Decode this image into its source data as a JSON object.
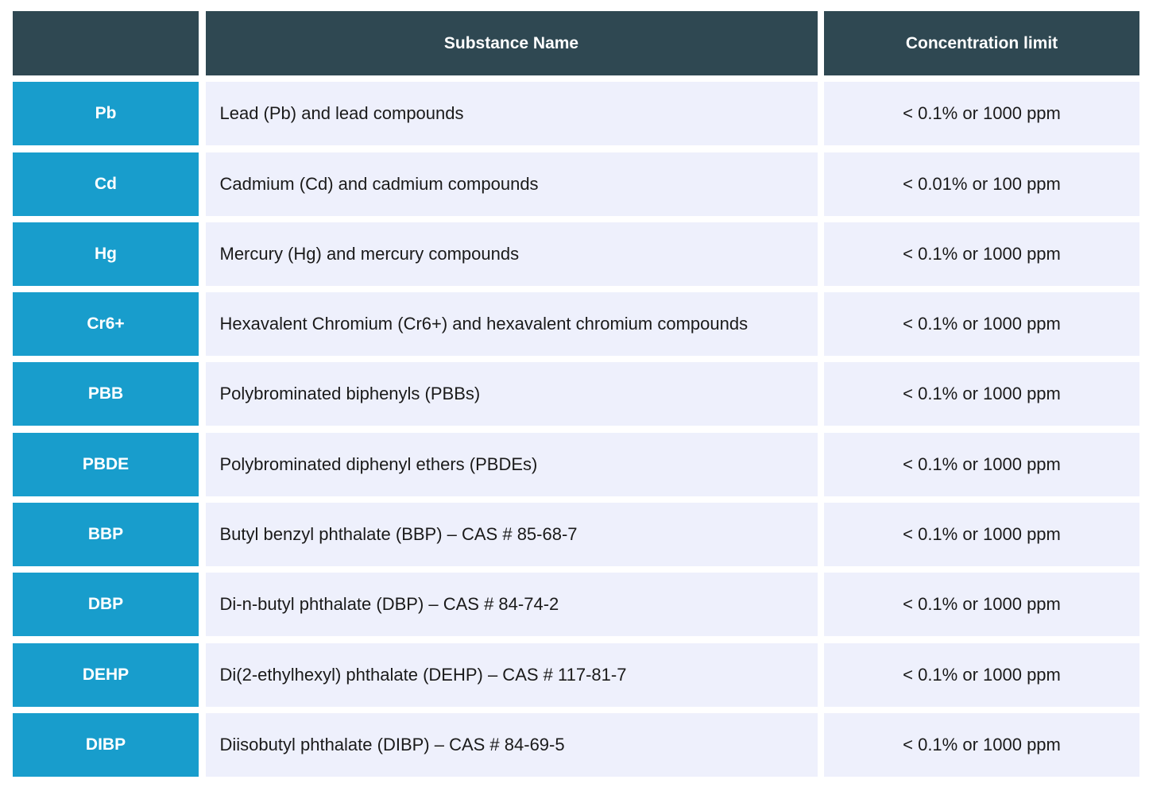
{
  "table": {
    "header": [
      "Substance Name",
      "Concentration limit"
    ],
    "rows": [
      [
        "Pb",
        "Lead (Pb) and lead compounds",
        "< 0.1% or 1000 ppm"
      ],
      [
        "Cd",
        "Cadmium (Cd) and cadmium compounds",
        "< 0.01% or 100 ppm"
      ],
      [
        "Hg",
        "Mercury (Hg) and mercury compounds",
        "< 0.1% or 1000 ppm"
      ],
      [
        "Cr6+",
        "Hexavalent Chromium (Cr6+) and hexavalent chromium compounds",
        "< 0.1% or 1000 ppm"
      ],
      [
        "PBB",
        "Polybrominated biphenyls (PBBs)",
        "< 0.1% or 1000 ppm"
      ],
      [
        "PBDE",
        "Polybrominated diphenyl ethers (PBDEs)",
        "< 0.1% or 1000 ppm"
      ],
      [
        "BBP",
        "Butyl benzyl phthalate (BBP) – CAS # 85-68-7",
        "< 0.1% or 1000 ppm"
      ],
      [
        "DBP",
        "Di-n-butyl phthalate (DBP) – CAS # 84-74-2",
        "< 0.1% or 1000 ppm"
      ],
      [
        "DEHP",
        "Di(2-ethylhexyl) phthalate (DEHP) – CAS # 117-81-7",
        "< 0.1% or 1000 ppm"
      ],
      [
        "DIBP",
        "Diisobutyl phthalate (DIBP) – CAS # 84-69-5",
        "< 0.1% or 1000 ppm"
      ]
    ]
  }
}
